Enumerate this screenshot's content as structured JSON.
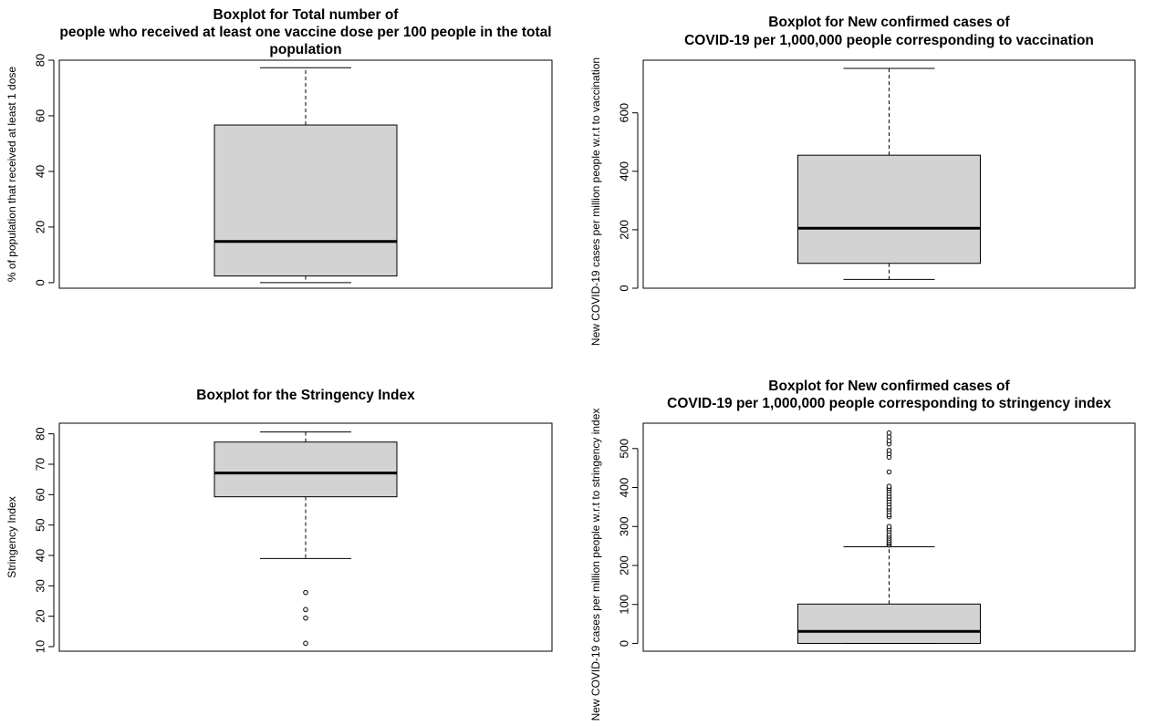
{
  "chart_data": [
    {
      "type": "boxplot",
      "title": [
        "Boxplot for Total number of",
        "people who received at least one vaccine dose per 100 people in the total",
        "population"
      ],
      "xlabel": "",
      "ylabel": "% of population that received at least 1 dose",
      "ylim": [
        -2,
        80
      ],
      "yticks": [
        0,
        20,
        40,
        60,
        80
      ],
      "stats": {
        "whisker_low": 0,
        "q1": 2.4,
        "median": 14.8,
        "q3": 56.7,
        "whisker_high": 77.3
      },
      "outliers": [],
      "box_color": "#d3d3d3"
    },
    {
      "type": "boxplot",
      "title": [
        "Boxplot for New confirmed cases of",
        "COVID-19 per 1,000,000 people corresponding to vaccination"
      ],
      "xlabel": "",
      "ylabel": "New COVID-19 cases per million people w.r.t to vaccination",
      "ylim": [
        0,
        780
      ],
      "yticks": [
        0,
        200,
        400,
        600
      ],
      "stats": {
        "whisker_low": 30,
        "q1": 85,
        "median": 205,
        "q3": 455,
        "whisker_high": 752
      },
      "outliers": [],
      "box_color": "#d3d3d3"
    },
    {
      "type": "boxplot",
      "title": [
        "Boxplot for the Stringency Index"
      ],
      "xlabel": "",
      "ylabel": "Stringency Index",
      "ylim": [
        8.5,
        83.5
      ],
      "yticks": [
        10,
        20,
        30,
        40,
        50,
        60,
        70,
        80
      ],
      "stats": {
        "whisker_low": 39,
        "q1": 59.3,
        "median": 67.1,
        "q3": 77.3,
        "whisker_high": 80.6
      },
      "outliers": [
        11.1,
        19.4,
        22.2,
        27.8
      ],
      "box_color": "#d3d3d3"
    },
    {
      "type": "boxplot",
      "title": [
        "Boxplot for New confirmed cases of",
        "COVID-19 per 1,000,000 people corresponding to stringency index"
      ],
      "xlabel": "",
      "ylabel": "New COVID-19 cases per million people w.r.t to stringency index",
      "ylim": [
        -20,
        565
      ],
      "yticks": [
        0,
        100,
        200,
        300,
        400,
        500
      ],
      "stats": {
        "whisker_low": 0,
        "q1": 0,
        "median": 31,
        "q3": 101,
        "whisker_high": 248
      },
      "outliers": [
        252,
        256,
        260,
        265,
        270,
        275,
        280,
        288,
        294,
        300,
        325,
        330,
        338,
        345,
        350,
        358,
        365,
        372,
        378,
        385,
        392,
        398,
        403,
        440,
        478,
        487,
        495,
        512,
        520,
        530,
        540
      ],
      "box_color": "#d3d3d3"
    }
  ]
}
